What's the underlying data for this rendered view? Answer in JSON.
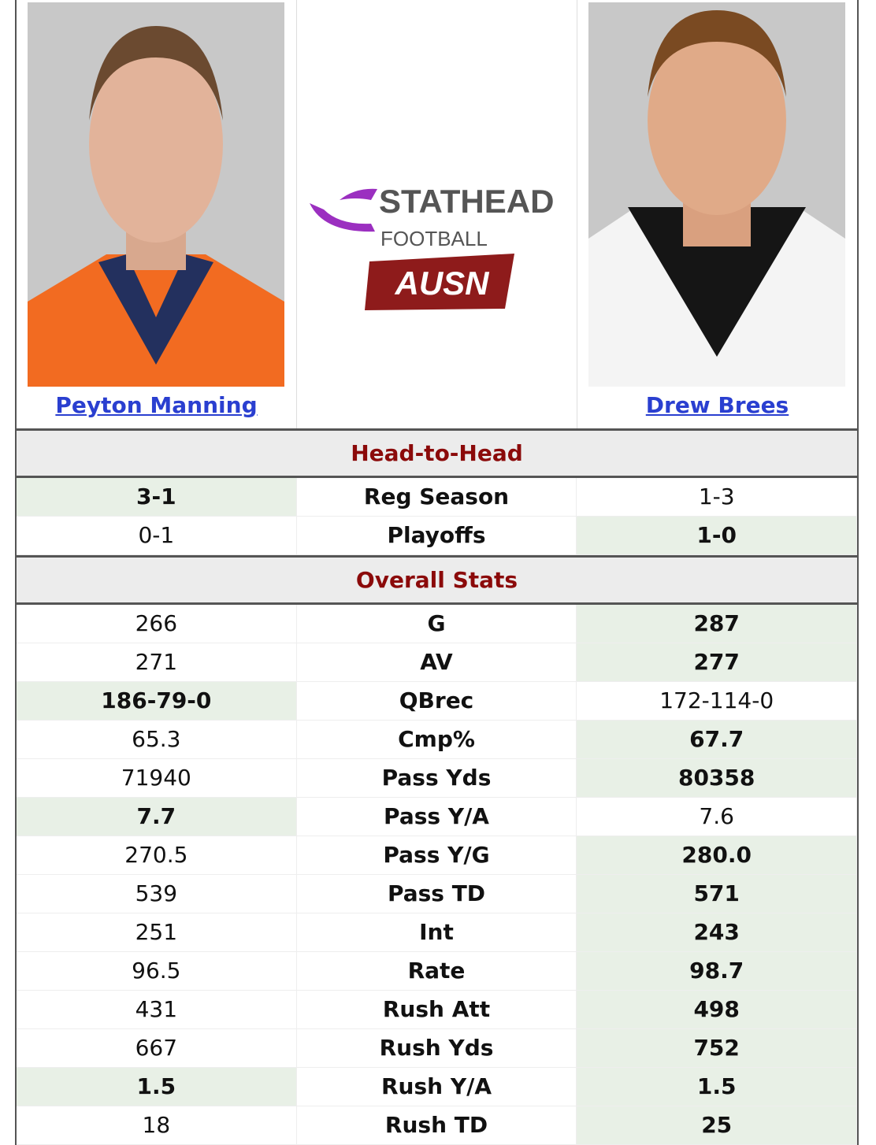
{
  "players": [
    {
      "name": "Peyton Manning",
      "jersey_color": "#f26b21"
    },
    {
      "name": "Drew Brees",
      "jersey_color": "#111111"
    }
  ],
  "logo": {
    "brand": "STATHEAD",
    "sub": "FOOTBALL",
    "badge": "AUSN",
    "brand_color": "#555555",
    "accent": "#9b2fc0",
    "badge_color": "#8e1b1b"
  },
  "h2h": {
    "title": "Head-to-Head",
    "rows": [
      {
        "left": "3-1",
        "label": "Reg Season",
        "right": "1-3",
        "winner": "left"
      },
      {
        "left": "0-1",
        "label": "Playoffs",
        "right": "1-0",
        "winner": "right"
      }
    ]
  },
  "overall": {
    "title": "Overall Stats",
    "rows": [
      {
        "left": "266",
        "label": "G",
        "right": "287",
        "winner": "right"
      },
      {
        "left": "271",
        "label": "AV",
        "right": "277",
        "winner": "right"
      },
      {
        "left": "186-79-0",
        "label": "QBrec",
        "right": "172-114-0",
        "winner": "left"
      },
      {
        "left": "65.3",
        "label": "Cmp%",
        "right": "67.7",
        "winner": "right"
      },
      {
        "left": "71940",
        "label": "Pass Yds",
        "right": "80358",
        "winner": "right"
      },
      {
        "left": "7.7",
        "label": "Pass Y/A",
        "right": "7.6",
        "winner": "left"
      },
      {
        "left": "270.5",
        "label": "Pass Y/G",
        "right": "280.0",
        "winner": "right"
      },
      {
        "left": "539",
        "label": "Pass TD",
        "right": "571",
        "winner": "right"
      },
      {
        "left": "251",
        "label": "Int",
        "right": "243",
        "winner": "right"
      },
      {
        "left": "96.5",
        "label": "Rate",
        "right": "98.7",
        "winner": "right"
      },
      {
        "left": "431",
        "label": "Rush Att",
        "right": "498",
        "winner": "right"
      },
      {
        "left": "667",
        "label": "Rush Yds",
        "right": "752",
        "winner": "right"
      },
      {
        "left": "1.5",
        "label": "Rush Y/A",
        "right": "1.5",
        "winner": "both"
      },
      {
        "left": "18",
        "label": "Rush TD",
        "right": "25",
        "winner": "right"
      }
    ]
  }
}
